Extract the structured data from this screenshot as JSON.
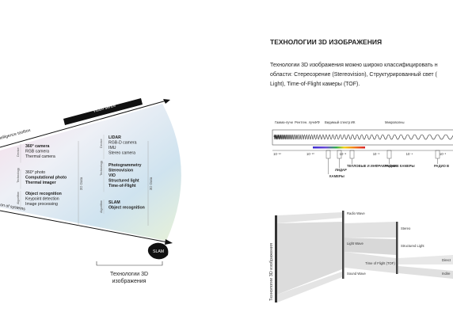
{
  "left": {
    "edges": {
      "top_label": "telligence toolbox",
      "bottom_label": "on of systems",
      "bar_label": "Vision sence"
    },
    "groups": [
      {
        "axis": "2D Data",
        "rows": [
          {
            "label": "Device",
            "items": [
              "360° camera",
              "RGB camera",
              "Thermal camera"
            ]
          },
          {
            "label": "Technology",
            "items": [
              "360° photo",
              "Computational photo",
              "Thermal imager"
            ]
          },
          {
            "label": "Algorithm",
            "items": [
              "Object recognition",
              "Keypoint detection",
              "Image processing"
            ]
          }
        ]
      },
      {
        "axis": "3D Data",
        "rows": [
          {
            "label": "Device",
            "items": [
              "LIDAR",
              "RGB-D camera",
              "IMU",
              "Stereo camera"
            ]
          },
          {
            "label": "Technology",
            "items": [
              "Photogrammetry",
              "Stereovision",
              "VIO",
              "Structured light",
              "Time-of-Flight"
            ]
          },
          {
            "label": "Algorithm",
            "items": [
              "SLAM",
              "Object recognition"
            ]
          }
        ]
      }
    ],
    "slam_badge": "SLAM",
    "caption": [
      "Технологии 3D",
      "изображения"
    ]
  },
  "right": {
    "title": "ТЕХНОЛОГИИ 3D ИЗОБРАЖЕНИЯ",
    "paragraph": [
      "Технологии 3D изображения можно широко классифицировать н",
      "области: Стереозрение (Stereovision), Структурированный свет (",
      "Light), Time-of-Flight камеры (TOF)."
    ],
    "spectrum": {
      "bands": [
        "Гамма-лучи",
        "Рентген. лучи",
        "УФ",
        "Видимый спектр",
        "ИК",
        "Микроволны"
      ],
      "scale": [
        "10⁻¹²",
        "10⁻¹⁰",
        "10⁻⁸",
        "10⁻⁶",
        "10⁻⁴",
        "10⁻²",
        "10⁰"
      ],
      "sensors": [
        "КАМЕРЫ",
        "ЛИДАР",
        "ТЕПЛОВЫЕ И ИНФРАКРАСНЫЕ КАМЕРЫ",
        "РАДАР",
        "РАДИО В"
      ]
    },
    "sankey": {
      "root": "Технологии 3D изображения",
      "waves": [
        "Radio Wave",
        "Light Wave",
        "Sound Wave"
      ],
      "methods": [
        "Stereo",
        "Structured Light",
        "Time of Flight (TOF)"
      ],
      "tof_types": [
        "Direct",
        "Indire"
      ]
    }
  }
}
